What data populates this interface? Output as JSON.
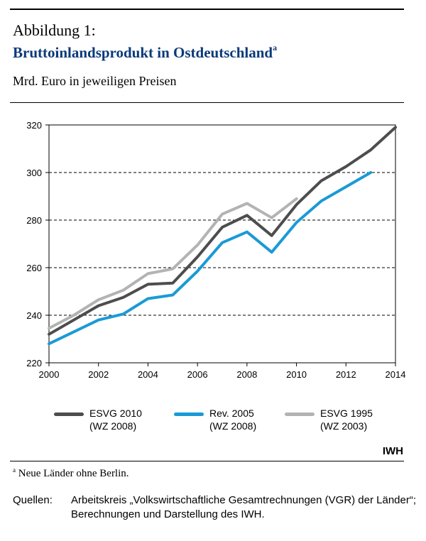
{
  "header": {
    "figure_label": "Abbildung 1:",
    "title": "Bruttoinlandsprodukt in Ostdeutschland",
    "title_footnote_mark": "a",
    "subtitle": "Mrd. Euro in jeweiligen Preisen"
  },
  "chart_data": {
    "type": "line",
    "x": [
      2000,
      2001,
      2002,
      2003,
      2004,
      2005,
      2006,
      2007,
      2008,
      2009,
      2010,
      2011,
      2012,
      2013,
      2014
    ],
    "xticks": [
      "2000",
      "2002",
      "2004",
      "2006",
      "2008",
      "2010",
      "2012",
      "2014"
    ],
    "yticks": [
      "220",
      "240",
      "260",
      "280",
      "300",
      "320"
    ],
    "xlim": [
      2000,
      2014
    ],
    "ylim": [
      220,
      320
    ],
    "grid": "horizontal dashed",
    "legend_position": "bottom",
    "series": [
      {
        "name": "ESVG 2010",
        "sub": "(WZ 2008)",
        "color": "#4d4d4d",
        "x": [
          2000,
          2001,
          2002,
          2003,
          2004,
          2005,
          2006,
          2007,
          2008,
          2009,
          2010,
          2011,
          2012,
          2013,
          2014
        ],
        "values": [
          232,
          238,
          244,
          247.5,
          253,
          253.5,
          264.5,
          277,
          282,
          273.5,
          286.5,
          296.5,
          302.5,
          309.5,
          319
        ]
      },
      {
        "name": "Rev. 2005",
        "sub": "(WZ 2008)",
        "color": "#1a9ad6",
        "x": [
          2000,
          2001,
          2002,
          2003,
          2004,
          2005,
          2006,
          2007,
          2008,
          2009,
          2010,
          2011,
          2012,
          2013
        ],
        "values": [
          228,
          233,
          238,
          240.5,
          247,
          248.5,
          258.5,
          270.5,
          275,
          266.5,
          279,
          288,
          294,
          300
        ]
      },
      {
        "name": "ESVG 1995",
        "sub": "(WZ 2003)",
        "color": "#b3b3b3",
        "x": [
          2000,
          2001,
          2002,
          2003,
          2004,
          2005,
          2006,
          2007,
          2008,
          2009,
          2010
        ],
        "values": [
          234.5,
          240,
          246.5,
          250.5,
          257.5,
          259.5,
          269.5,
          282.5,
          287,
          281,
          289
        ]
      }
    ]
  },
  "brand": "IWH",
  "footnote": {
    "mark": "a",
    "text": " Neue Länder ohne Berlin."
  },
  "sources": {
    "label": "Quellen:",
    "text": "Arbeitskreis „Volkswirtschaftliche Gesamtrechnungen (VGR) der Länder“; Berechnungen und Darstellung des IWH."
  }
}
